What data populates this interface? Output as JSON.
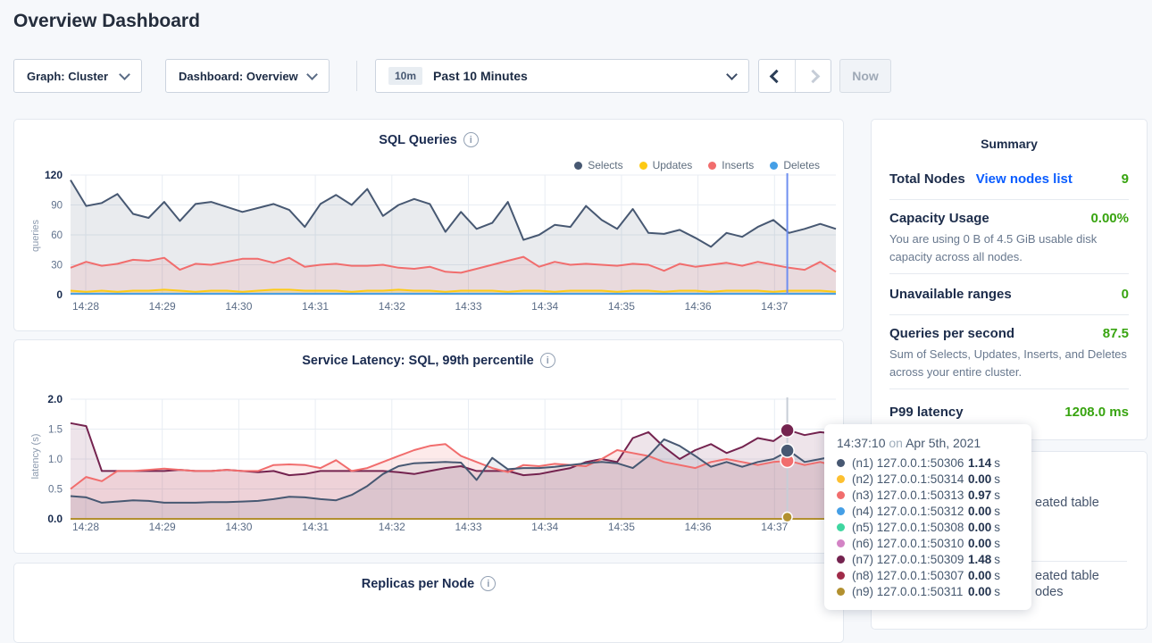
{
  "page_title": "Overview Dashboard",
  "toolbar": {
    "graph_select": "Graph: Cluster",
    "dashboard_select": "Dashboard: Overview",
    "time_range_badge": "10m",
    "time_range_label": "Past 10 Minutes",
    "now_button": "Now"
  },
  "summary": {
    "title": "Summary",
    "rows": [
      {
        "label": "Total Nodes",
        "link": "View nodes list",
        "value": "9"
      },
      {
        "label": "Capacity Usage",
        "value": "0.00%",
        "desc": "You are using 0 B of 4.5 GiB usable disk capacity across all nodes."
      },
      {
        "label": "Unavailable ranges",
        "value": "0"
      },
      {
        "label": "Queries per second",
        "value": "87.5",
        "desc": "Sum of Selects, Updates, Inserts, and Deletes across your entire cluster."
      },
      {
        "label": "P99 latency",
        "value": "1208.0 ms"
      }
    ]
  },
  "tooltip": {
    "time": "14:37:10",
    "on": "on",
    "date": "Apr 5th, 2021",
    "rows": [
      {
        "color": "#475872",
        "node": "(n1) 127.0.0.1:50306",
        "value": "1.14",
        "unit": "s"
      },
      {
        "color": "#fdc030",
        "node": "(n2) 127.0.0.1:50314",
        "value": "0.00",
        "unit": "s"
      },
      {
        "color": "#f16d6d",
        "node": "(n3) 127.0.0.1:50313",
        "value": "0.97",
        "unit": "s"
      },
      {
        "color": "#459fe6",
        "node": "(n4) 127.0.0.1:50312",
        "value": "0.00",
        "unit": "s"
      },
      {
        "color": "#3fd6a0",
        "node": "(n5) 127.0.0.1:50308",
        "value": "0.00",
        "unit": "s"
      },
      {
        "color": "#d383c5",
        "node": "(n6) 127.0.0.1:50310",
        "value": "0.00",
        "unit": "s"
      },
      {
        "color": "#74234f",
        "node": "(n7) 127.0.0.1:50309",
        "value": "1.48",
        "unit": "s"
      },
      {
        "color": "#a02b49",
        "node": "(n8) 127.0.0.1:50307",
        "value": "0.00",
        "unit": "s"
      },
      {
        "color": "#b2902f",
        "node": "(n9) 127.0.0.1:50311",
        "value": "0.00",
        "unit": "s"
      }
    ]
  },
  "events_panel_fragments": {
    "line1": "eated table",
    "line2": "eated table",
    "line3": "odes"
  },
  "chart_data": [
    {
      "id": "sql-queries",
      "type": "line",
      "title": "SQL Queries",
      "ylabel": "queries",
      "ylim": [
        0,
        120
      ],
      "yticks": [
        0,
        30,
        60,
        90,
        120
      ],
      "ytick_labels": [
        "0",
        "30",
        "60",
        "90",
        "120"
      ],
      "xticks": [
        "14:28",
        "14:29",
        "14:30",
        "14:31",
        "14:32",
        "14:33",
        "14:34",
        "14:35",
        "14:36",
        "14:37"
      ],
      "grid": true,
      "legend_position": "top-right",
      "hover_time_fraction": 0.9365,
      "hover_line_color": "#6f8ff0",
      "series": [
        {
          "name": "Selects",
          "color": "#475872",
          "fill": "rgba(71,88,114,0.12)",
          "values": [
            115,
            89,
            92,
            101,
            81,
            77,
            93,
            74,
            91,
            93,
            88,
            83,
            87,
            91,
            85,
            68,
            91,
            100,
            90,
            106,
            79,
            90,
            96,
            91,
            63,
            83,
            66,
            72,
            93,
            55,
            60,
            70,
            68,
            89,
            75,
            66,
            86,
            62,
            61,
            65,
            57,
            48,
            62,
            58,
            68,
            75,
            62,
            66,
            71,
            66
          ]
        },
        {
          "name": "Updates",
          "color": "#fdca14",
          "fill": "rgba(253,202,20,0.25)",
          "values": [
            4,
            3,
            4,
            3,
            4,
            4,
            5,
            4,
            3,
            4,
            4,
            3,
            4,
            5,
            5,
            4,
            4,
            4,
            3,
            4,
            4,
            5,
            4,
            4,
            3,
            4,
            4,
            4,
            3,
            4,
            4,
            3,
            4,
            4,
            4,
            3,
            4,
            4,
            3,
            4,
            4,
            3,
            4,
            4,
            4,
            3,
            4,
            4,
            4,
            3
          ]
        },
        {
          "name": "Inserts",
          "color": "#f16d6d",
          "fill": "rgba(241,109,109,0.13)",
          "values": [
            27,
            33,
            29,
            31,
            35,
            34,
            37,
            25,
            31,
            30,
            33,
            36,
            36,
            32,
            37,
            28,
            30,
            31,
            29,
            29,
            30,
            27,
            26,
            28,
            23,
            22,
            26,
            30,
            34,
            38,
            28,
            33,
            30,
            31,
            30,
            29,
            31,
            30,
            24,
            31,
            28,
            30,
            32,
            29,
            33,
            30,
            27,
            25,
            33,
            23
          ]
        },
        {
          "name": "Deletes",
          "color": "#459fe6",
          "fill": "none",
          "constant": 1,
          "length": 50
        }
      ]
    },
    {
      "id": "latency",
      "type": "line",
      "title": "Service Latency: SQL, 99th percentile",
      "ylabel": "latency (s)",
      "ylim": [
        0,
        2.0
      ],
      "yticks": [
        0,
        0.5,
        1.0,
        1.5,
        2.0
      ],
      "ytick_labels": [
        "0.0",
        "0.5",
        "1.0",
        "1.5",
        "2.0"
      ],
      "xticks": [
        "14:28",
        "14:29",
        "14:30",
        "14:31",
        "14:32",
        "14:33",
        "14:34",
        "14:35",
        "14:36",
        "14:37"
      ],
      "grid": true,
      "legend_position": "none",
      "hover_time_fraction": 0.9365,
      "hover_line_color": "#c7cdd6",
      "series": [
        {
          "name": "(n7) 127.0.0.1:50309",
          "color": "#74234f",
          "fill": "rgba(116,35,79,0.12)",
          "hover_dot": true,
          "values": [
            1.6,
            1.55,
            0.8,
            0.8,
            0.8,
            0.8,
            0.8,
            0.82,
            0.8,
            0.8,
            0.82,
            0.8,
            0.78,
            0.8,
            0.73,
            0.75,
            0.8,
            0.8,
            0.8,
            0.8,
            0.8,
            0.78,
            0.75,
            0.8,
            0.85,
            0.88,
            0.8,
            0.8,
            0.8,
            0.73,
            0.75,
            0.8,
            0.85,
            0.95,
            1.0,
            0.95,
            1.35,
            1.45,
            1.2,
            1.0,
            1.15,
            1.25,
            1.1,
            1.2,
            1.35,
            1.3,
            1.48,
            1.4,
            1.45,
            1.42
          ]
        },
        {
          "name": "(n3) 127.0.0.1:50313",
          "color": "#f16d6d",
          "fill": "rgba(241,109,109,0.14)",
          "hover_dot": true,
          "values": [
            0.5,
            0.7,
            0.63,
            0.8,
            0.8,
            0.82,
            0.84,
            0.82,
            0.8,
            0.8,
            0.82,
            0.8,
            0.8,
            0.9,
            0.91,
            0.9,
            0.85,
            0.98,
            0.8,
            0.85,
            0.95,
            1.05,
            1.15,
            1.22,
            1.25,
            1.05,
            0.95,
            0.85,
            0.78,
            0.9,
            0.88,
            0.92,
            0.9,
            0.88,
            1.0,
            1.15,
            1.1,
            1.05,
            0.95,
            0.9,
            0.85,
            0.95,
            1.0,
            0.95,
            0.9,
            0.95,
            0.97,
            0.9,
            0.95,
            0.88
          ]
        },
        {
          "name": "(n1) 127.0.0.1:50306",
          "color": "#475872",
          "fill": "rgba(71,88,114,0.10)",
          "hover_dot": true,
          "values": [
            0.38,
            0.36,
            0.27,
            0.29,
            0.31,
            0.3,
            0.27,
            0.27,
            0.27,
            0.28,
            0.28,
            0.29,
            0.3,
            0.33,
            0.37,
            0.36,
            0.33,
            0.31,
            0.4,
            0.55,
            0.75,
            0.88,
            0.93,
            0.94,
            0.95,
            0.94,
            0.65,
            1.02,
            0.83,
            0.85,
            0.85,
            0.87,
            0.9,
            0.93,
            0.95,
            0.93,
            0.85,
            1.05,
            1.33,
            1.22,
            1.05,
            0.87,
            0.95,
            0.87,
            0.95,
            1.0,
            1.14,
            0.95,
            1.0,
            1.05
          ]
        },
        {
          "name": "(n9) 127.0.0.1:50311",
          "color": "#b2902f",
          "fill": "none",
          "constant": 0,
          "length": 50,
          "hover_dot": true,
          "baseline": true
        }
      ]
    },
    {
      "id": "replicas",
      "type": "line",
      "title": "Replicas per Node"
    }
  ]
}
